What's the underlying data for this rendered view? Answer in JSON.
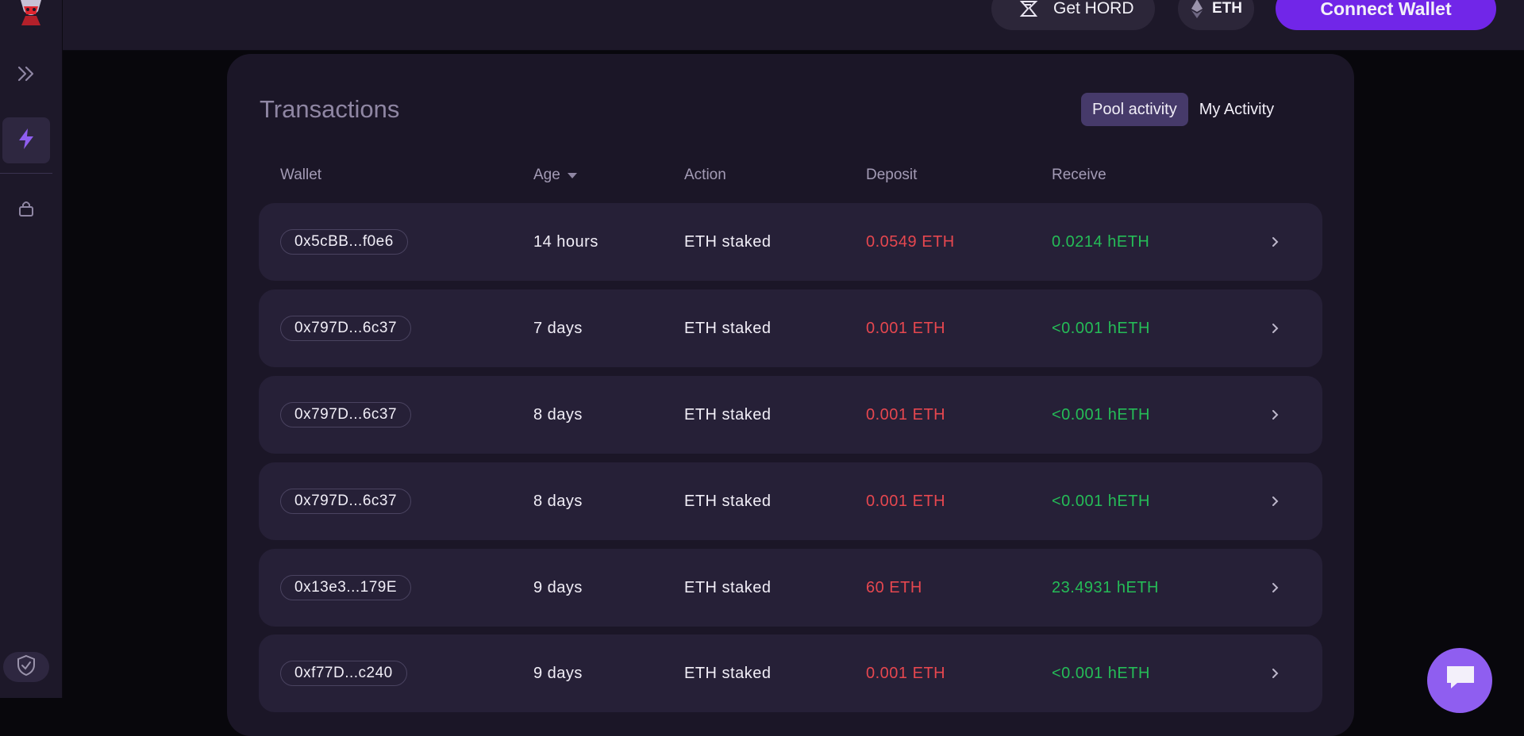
{
  "header": {
    "get_hord_label": "Get HORD",
    "network_label": "ETH",
    "connect_label": "Connect Wallet"
  },
  "colors": {
    "accent": "#7126e8",
    "deposit": "#e6474f",
    "receive": "#25bc57",
    "card": "#1b1627",
    "row": "#262037"
  },
  "icons": {
    "sidebar": [
      "expand-icon",
      "lightning-icon",
      "lock-icon",
      "shield-icon"
    ],
    "header": [
      "hord-logo-icon",
      "eth-icon"
    ],
    "row": "chevron-right-icon",
    "chat": "chat-icon"
  },
  "main": {
    "title": "Transactions",
    "tabs": [
      {
        "label": "Pool activity",
        "active": true
      },
      {
        "label": "My Activity",
        "active": false
      }
    ],
    "columns": [
      "Wallet",
      "Age",
      "Action",
      "Deposit",
      "Receive"
    ],
    "rows": [
      {
        "wallet": "0x5cBB...f0e6",
        "age": "14 hours",
        "action": "ETH staked",
        "deposit": "0.0549 ETH",
        "receive": "0.0214 hETH"
      },
      {
        "wallet": "0x797D...6c37",
        "age": "7 days",
        "action": "ETH staked",
        "deposit": "0.001 ETH",
        "receive": "<0.001 hETH"
      },
      {
        "wallet": "0x797D...6c37",
        "age": "8 days",
        "action": "ETH staked",
        "deposit": "0.001 ETH",
        "receive": "<0.001 hETH"
      },
      {
        "wallet": "0x797D...6c37",
        "age": "8 days",
        "action": "ETH staked",
        "deposit": "0.001 ETH",
        "receive": "<0.001 hETH"
      },
      {
        "wallet": "0x13e3...179E",
        "age": "9 days",
        "action": "ETH staked",
        "deposit": "60 ETH",
        "receive": "23.4931 hETH"
      },
      {
        "wallet": "0xf77D...c240",
        "age": "9 days",
        "action": "ETH staked",
        "deposit": "0.001 ETH",
        "receive": "<0.001 hETH"
      }
    ]
  }
}
